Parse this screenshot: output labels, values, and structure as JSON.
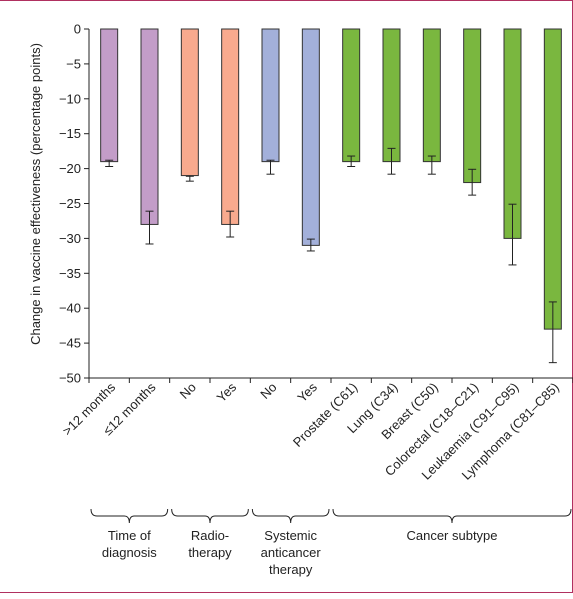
{
  "chart_data": {
    "type": "bar",
    "ylabel": "Change in vaccine effectiveness (percentage points)",
    "ylim": [
      -50,
      0
    ],
    "yticks": [
      0,
      -5,
      -10,
      -15,
      -20,
      -25,
      -30,
      -35,
      -40,
      -45,
      -50
    ],
    "grid": false,
    "categories": [
      ">12 months",
      "≤12 months",
      "No",
      "Yes",
      "No",
      "Yes",
      "Prostate (C61)",
      "Lung (C34)",
      "Breast (C50)",
      "Colorectal (C18–C21)",
      "Leukaemia (C91–C95)",
      "Lymphoma (C81–C85)"
    ],
    "values": [
      -19,
      -28,
      -21,
      -28,
      -19,
      -31,
      -19,
      -19,
      -19,
      -22,
      -30,
      -43
    ],
    "error_low": [
      -19.7,
      -30.8,
      -21.8,
      -29.8,
      -20.8,
      -31.8,
      -19.7,
      -20.8,
      -20.8,
      -23.8,
      -33.8,
      -47.8
    ],
    "error_high": [
      -18.8,
      -26.1,
      -21.1,
      -26.1,
      -18.8,
      -30.1,
      -18.2,
      -17.1,
      -18.2,
      -20.1,
      -25.1,
      -39.1
    ],
    "bar_colors": [
      "#c39dc8",
      "#c39dc8",
      "#f8aa8e",
      "#f8aa8e",
      "#a3b0da",
      "#a3b0da",
      "#7ab73f",
      "#7ab73f",
      "#7ab73f",
      "#7ab73f",
      "#7ab73f",
      "#7ab73f"
    ],
    "groups": [
      {
        "label_lines": [
          "Time of",
          "diagnosis"
        ],
        "start": 0,
        "end": 1
      },
      {
        "label_lines": [
          "Radio-",
          "therapy"
        ],
        "start": 2,
        "end": 3
      },
      {
        "label_lines": [
          "Systemic",
          "anticancer",
          "therapy"
        ],
        "start": 4,
        "end": 5
      },
      {
        "label_lines": [
          "Cancer subtype"
        ],
        "start": 6,
        "end": 11
      }
    ]
  }
}
